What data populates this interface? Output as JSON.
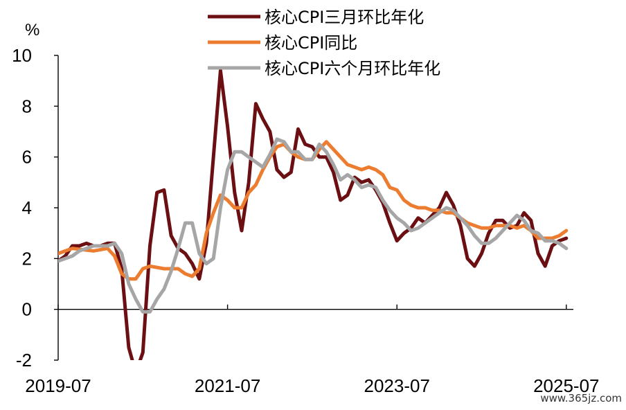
{
  "chart_data": {
    "type": "line",
    "unit_label": "%",
    "ylim": [
      -2,
      10
    ],
    "yticks": [
      -2,
      0,
      2,
      4,
      6,
      8,
      10
    ],
    "xlim": [
      "2019-07",
      "2025-08"
    ],
    "xticks": [
      "2019-07",
      "2021-07",
      "2023-07",
      "2025-07"
    ],
    "grid": false,
    "legend_position": "top",
    "series": [
      {
        "name": "核心CPI三月环比年化",
        "color": "#6b0f12",
        "points": [
          [
            "2019-07",
            1.9
          ],
          [
            "2019-08",
            2.1
          ],
          [
            "2019-09",
            2.5
          ],
          [
            "2019-10",
            2.5
          ],
          [
            "2019-11",
            2.6
          ],
          [
            "2019-12",
            2.5
          ],
          [
            "2020-01",
            2.5
          ],
          [
            "2020-02",
            2.6
          ],
          [
            "2020-03",
            2.6
          ],
          [
            "2020-04",
            1.6
          ],
          [
            "2020-05",
            -1.5
          ],
          [
            "2020-06",
            -2.5
          ],
          [
            "2020-07",
            -1.7
          ],
          [
            "2020-08",
            2.5
          ],
          [
            "2020-09",
            4.6
          ],
          [
            "2020-10",
            4.7
          ],
          [
            "2020-11",
            2.9
          ],
          [
            "2020-12",
            2.4
          ],
          [
            "2021-01",
            2.2
          ],
          [
            "2021-02",
            1.8
          ],
          [
            "2021-03",
            1.2
          ],
          [
            "2021-04",
            2.6
          ],
          [
            "2021-05",
            6.0
          ],
          [
            "2021-06",
            9.4
          ],
          [
            "2021-07",
            7.2
          ],
          [
            "2021-08",
            4.6
          ],
          [
            "2021-09",
            3.1
          ],
          [
            "2021-10",
            5.0
          ],
          [
            "2021-11",
            8.1
          ],
          [
            "2021-12",
            7.5
          ],
          [
            "2022-01",
            7.0
          ],
          [
            "2022-02",
            5.5
          ],
          [
            "2022-03",
            5.2
          ],
          [
            "2022-04",
            5.4
          ],
          [
            "2022-05",
            7.1
          ],
          [
            "2022-06",
            6.5
          ],
          [
            "2022-07",
            6.4
          ],
          [
            "2022-08",
            6.0
          ],
          [
            "2022-09",
            6.0
          ],
          [
            "2022-10",
            5.4
          ],
          [
            "2022-11",
            4.3
          ],
          [
            "2022-12",
            4.5
          ],
          [
            "2023-01",
            5.2
          ],
          [
            "2023-02",
            5.0
          ],
          [
            "2023-03",
            5.1
          ],
          [
            "2023-04",
            4.7
          ],
          [
            "2023-05",
            4.2
          ],
          [
            "2023-06",
            3.4
          ],
          [
            "2023-07",
            2.7
          ],
          [
            "2023-08",
            3.0
          ],
          [
            "2023-09",
            3.2
          ],
          [
            "2023-10",
            3.6
          ],
          [
            "2023-11",
            3.4
          ],
          [
            "2023-12",
            3.7
          ],
          [
            "2024-01",
            4.0
          ],
          [
            "2024-02",
            4.6
          ],
          [
            "2024-03",
            4.1
          ],
          [
            "2024-04",
            3.3
          ],
          [
            "2024-05",
            2.0
          ],
          [
            "2024-06",
            1.7
          ],
          [
            "2024-07",
            2.2
          ],
          [
            "2024-08",
            3.0
          ],
          [
            "2024-09",
            3.5
          ],
          [
            "2024-10",
            3.5
          ],
          [
            "2024-11",
            3.2
          ],
          [
            "2024-12",
            3.3
          ],
          [
            "2025-01",
            3.8
          ],
          [
            "2025-02",
            3.5
          ],
          [
            "2025-03",
            2.2
          ],
          [
            "2025-04",
            1.7
          ],
          [
            "2025-05",
            2.5
          ],
          [
            "2025-06",
            2.7
          ],
          [
            "2025-07",
            2.8
          ]
        ]
      },
      {
        "name": "核心CPI同比",
        "color": "#ec7c30",
        "points": [
          [
            "2019-07",
            2.2
          ],
          [
            "2019-09",
            2.4
          ],
          [
            "2019-12",
            2.3
          ],
          [
            "2020-02",
            2.4
          ],
          [
            "2020-03",
            2.1
          ],
          [
            "2020-04",
            1.4
          ],
          [
            "2020-05",
            1.2
          ],
          [
            "2020-06",
            1.2
          ],
          [
            "2020-07",
            1.6
          ],
          [
            "2020-08",
            1.7
          ],
          [
            "2020-10",
            1.6
          ],
          [
            "2020-12",
            1.6
          ],
          [
            "2021-01",
            1.4
          ],
          [
            "2021-02",
            1.3
          ],
          [
            "2021-03",
            1.6
          ],
          [
            "2021-04",
            3.0
          ],
          [
            "2021-05",
            3.8
          ],
          [
            "2021-06",
            4.5
          ],
          [
            "2021-07",
            4.3
          ],
          [
            "2021-08",
            4.0
          ],
          [
            "2021-09",
            4.0
          ],
          [
            "2021-10",
            4.6
          ],
          [
            "2021-11",
            4.9
          ],
          [
            "2021-12",
            5.5
          ],
          [
            "2022-01",
            6.0
          ],
          [
            "2022-02",
            6.4
          ],
          [
            "2022-03",
            6.5
          ],
          [
            "2022-04",
            6.2
          ],
          [
            "2022-05",
            6.0
          ],
          [
            "2022-06",
            5.9
          ],
          [
            "2022-07",
            5.9
          ],
          [
            "2022-08",
            6.3
          ],
          [
            "2022-09",
            6.6
          ],
          [
            "2022-10",
            6.3
          ],
          [
            "2022-11",
            6.0
          ],
          [
            "2022-12",
            5.7
          ],
          [
            "2023-01",
            5.6
          ],
          [
            "2023-02",
            5.5
          ],
          [
            "2023-03",
            5.6
          ],
          [
            "2023-04",
            5.5
          ],
          [
            "2023-05",
            5.3
          ],
          [
            "2023-06",
            4.8
          ],
          [
            "2023-07",
            4.7
          ],
          [
            "2023-08",
            4.3
          ],
          [
            "2023-09",
            4.1
          ],
          [
            "2023-10",
            4.0
          ],
          [
            "2023-11",
            4.0
          ],
          [
            "2023-12",
            3.9
          ],
          [
            "2024-01",
            3.9
          ],
          [
            "2024-02",
            3.8
          ],
          [
            "2024-03",
            3.8
          ],
          [
            "2024-04",
            3.6
          ],
          [
            "2024-05",
            3.4
          ],
          [
            "2024-06",
            3.3
          ],
          [
            "2024-07",
            3.2
          ],
          [
            "2024-08",
            3.2
          ],
          [
            "2024-09",
            3.3
          ],
          [
            "2024-10",
            3.3
          ],
          [
            "2024-11",
            3.3
          ],
          [
            "2024-12",
            3.2
          ],
          [
            "2025-01",
            3.3
          ],
          [
            "2025-02",
            3.1
          ],
          [
            "2025-03",
            2.8
          ],
          [
            "2025-04",
            2.8
          ],
          [
            "2025-05",
            2.8
          ],
          [
            "2025-06",
            2.9
          ],
          [
            "2025-07",
            3.1
          ]
        ]
      },
      {
        "name": "核心CPI六个月环比年化",
        "color": "#a6a6a6",
        "points": [
          [
            "2019-07",
            1.9
          ],
          [
            "2019-08",
            2.0
          ],
          [
            "2019-09",
            2.1
          ],
          [
            "2019-10",
            2.3
          ],
          [
            "2019-11",
            2.4
          ],
          [
            "2019-12",
            2.5
          ],
          [
            "2020-01",
            2.5
          ],
          [
            "2020-02",
            2.5
          ],
          [
            "2020-03",
            2.6
          ],
          [
            "2020-04",
            2.2
          ],
          [
            "2020-05",
            1.0
          ],
          [
            "2020-06",
            0.4
          ],
          [
            "2020-07",
            -0.1
          ],
          [
            "2020-08",
            -0.1
          ],
          [
            "2020-09",
            0.4
          ],
          [
            "2020-10",
            0.8
          ],
          [
            "2020-11",
            1.5
          ],
          [
            "2020-12",
            2.4
          ],
          [
            "2021-01",
            3.4
          ],
          [
            "2021-02",
            3.4
          ],
          [
            "2021-03",
            2.2
          ],
          [
            "2021-04",
            1.8
          ],
          [
            "2021-05",
            2.0
          ],
          [
            "2021-06",
            4.0
          ],
          [
            "2021-07",
            5.5
          ],
          [
            "2021-08",
            6.2
          ],
          [
            "2021-09",
            6.2
          ],
          [
            "2021-10",
            6.0
          ],
          [
            "2021-11",
            5.8
          ],
          [
            "2021-12",
            5.6
          ],
          [
            "2022-01",
            6.1
          ],
          [
            "2022-02",
            6.7
          ],
          [
            "2022-03",
            6.6
          ],
          [
            "2022-04",
            6.2
          ],
          [
            "2022-05",
            6.2
          ],
          [
            "2022-06",
            5.9
          ],
          [
            "2022-07",
            5.9
          ],
          [
            "2022-08",
            6.5
          ],
          [
            "2022-09",
            6.2
          ],
          [
            "2022-10",
            5.7
          ],
          [
            "2022-11",
            5.1
          ],
          [
            "2022-12",
            5.3
          ],
          [
            "2023-01",
            5.1
          ],
          [
            "2023-02",
            4.8
          ],
          [
            "2023-03",
            4.9
          ],
          [
            "2023-04",
            4.8
          ],
          [
            "2023-05",
            4.3
          ],
          [
            "2023-06",
            3.9
          ],
          [
            "2023-07",
            3.6
          ],
          [
            "2023-08",
            3.4
          ],
          [
            "2023-09",
            3.1
          ],
          [
            "2023-10",
            3.2
          ],
          [
            "2023-11",
            3.4
          ],
          [
            "2023-12",
            3.6
          ],
          [
            "2024-01",
            3.8
          ],
          [
            "2024-02",
            4.0
          ],
          [
            "2024-03",
            3.9
          ],
          [
            "2024-04",
            3.6
          ],
          [
            "2024-05",
            3.3
          ],
          [
            "2024-06",
            2.9
          ],
          [
            "2024-07",
            2.6
          ],
          [
            "2024-08",
            2.6
          ],
          [
            "2024-09",
            2.8
          ],
          [
            "2024-10",
            3.1
          ],
          [
            "2024-11",
            3.4
          ],
          [
            "2024-12",
            3.7
          ],
          [
            "2025-01",
            3.5
          ],
          [
            "2025-02",
            3.1
          ],
          [
            "2025-03",
            3.0
          ],
          [
            "2025-04",
            2.7
          ],
          [
            "2025-05",
            2.7
          ],
          [
            "2025-06",
            2.6
          ],
          [
            "2025-07",
            2.4
          ]
        ]
      }
    ]
  },
  "watermark": "www.365jz.com"
}
